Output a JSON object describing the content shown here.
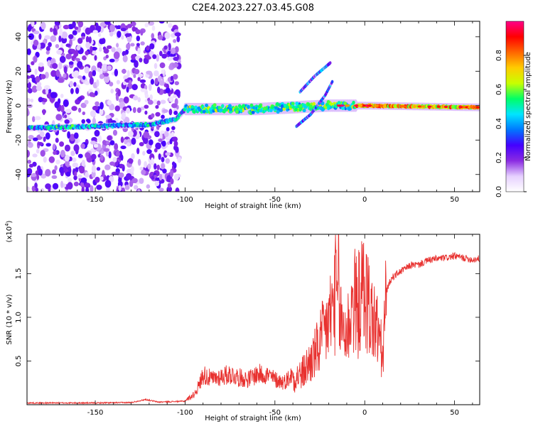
{
  "title": "C2E4.2023.227.03.45.G08",
  "chart_data": [
    {
      "type": "heatmap",
      "xlabel": "Height of straight line (km)",
      "ylabel": "Frequency (Hz)",
      "xlim": [
        -188,
        64
      ],
      "ylim": [
        -50,
        49
      ],
      "xticks": [
        -150,
        -100,
        -50,
        0,
        50
      ],
      "yticks": [
        -40,
        -20,
        0,
        20,
        40
      ],
      "colorbar": {
        "label": "Normalized spectral amplitude",
        "range": [
          0,
          1
        ],
        "ticks": [
          "0.0",
          "0.2",
          "0.4",
          "0.6",
          "0.8"
        ],
        "colors": [
          "#ffffff",
          "#e6d0ff",
          "#8a2be2",
          "#4400ff",
          "#0077ff",
          "#00e5ff",
          "#00ff66",
          "#c8ff00",
          "#ffcc00",
          "#ff6600",
          "#ff0000",
          "#ff0088"
        ]
      },
      "features": [
        {
          "name": "main ridge",
          "points": [
            [
              -188,
              -13
            ],
            [
              -150,
              -12
            ],
            [
              -120,
              -11
            ],
            [
              -105,
              -8
            ],
            [
              -100,
              -2
            ],
            [
              -60,
              -2
            ],
            [
              -40,
              -1
            ],
            [
              -20,
              0
            ],
            [
              0,
              0
            ],
            [
              63,
              -1
            ]
          ]
        },
        {
          "name": "upper branch",
          "points": [
            [
              -36,
              8
            ],
            [
              -28,
              17
            ],
            [
              -19,
              25
            ]
          ]
        },
        {
          "name": "lower branch",
          "points": [
            [
              -38,
              -12
            ],
            [
              -30,
              -5
            ],
            [
              -22,
              6
            ],
            [
              -18,
              14
            ]
          ]
        }
      ]
    },
    {
      "type": "line",
      "xlabel": "Height of straight line (km)",
      "ylabel": "SNR (10 * v/v)",
      "y_multiplier_label": "(x10",
      "y_multiplier_exp": "4",
      "y_multiplier_close": ")",
      "xlim": [
        -188,
        64
      ],
      "ylim": [
        0,
        1.95
      ],
      "xticks": [
        -150,
        -100,
        -50,
        0,
        50
      ],
      "yticks": [
        0.5,
        1.0,
        1.5
      ],
      "series": [
        {
          "color": "#e8312f",
          "x": [
            -188,
            -170,
            -150,
            -130,
            -122,
            -115,
            -100,
            -95,
            -92,
            -90,
            -85,
            -80,
            -75,
            -70,
            -65,
            -60,
            -55,
            -50,
            -45,
            -40,
            -35,
            -30,
            -27,
            -24,
            -21,
            -18,
            -16,
            -14,
            -12,
            -10,
            -8,
            -6,
            -4,
            -2,
            0,
            2,
            4,
            6,
            8,
            10,
            12,
            15,
            18,
            22,
            26,
            30,
            35,
            40,
            45,
            50,
            55,
            60,
            63
          ],
          "y": [
            0.02,
            0.02,
            0.02,
            0.025,
            0.06,
            0.03,
            0.04,
            0.1,
            0.2,
            0.3,
            0.25,
            0.28,
            0.3,
            0.27,
            0.25,
            0.3,
            0.3,
            0.25,
            0.22,
            0.3,
            0.35,
            0.5,
            0.6,
            0.75,
            0.9,
            1.1,
            1.3,
            1.0,
            0.9,
            0.8,
            1.05,
            1.2,
            1.1,
            1.25,
            1.3,
            1.15,
            1.0,
            0.9,
            0.8,
            0.5,
            1.3,
            1.45,
            1.5,
            1.55,
            1.6,
            1.6,
            1.65,
            1.67,
            1.68,
            1.7,
            1.68,
            1.66,
            1.67
          ]
        }
      ]
    }
  ]
}
